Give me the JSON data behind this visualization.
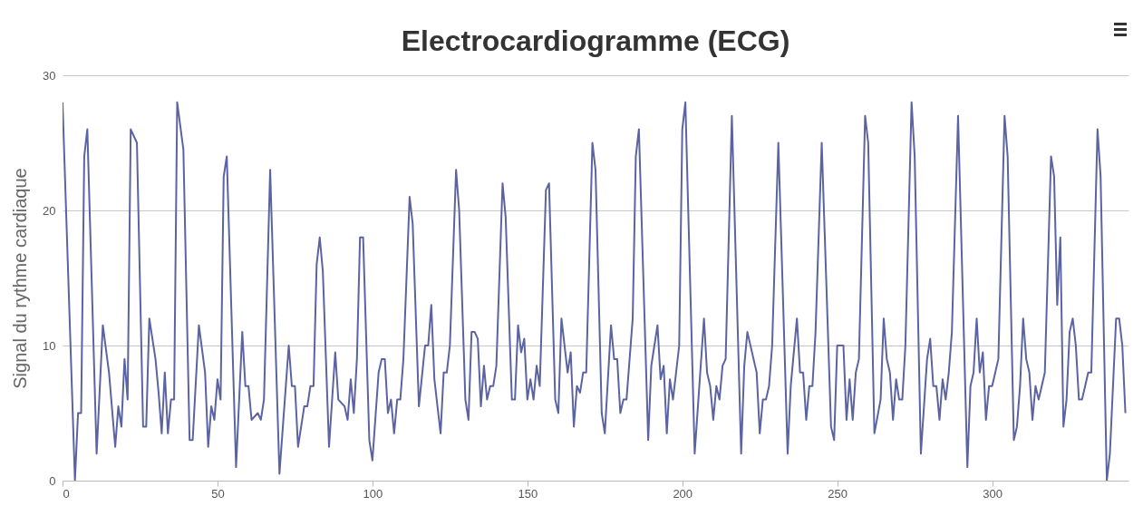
{
  "chart_data": {
    "type": "line",
    "title": "Electrocardiogramme (ECG)",
    "ylabel": "Signal du rythme cardiaque",
    "x": [
      0,
      4,
      5,
      6,
      7,
      8,
      11,
      13,
      15,
      17,
      18,
      19,
      20,
      21,
      22,
      24,
      26,
      27,
      28,
      30,
      31,
      32,
      33,
      34,
      35,
      36,
      37,
      39,
      41,
      42,
      44,
      46,
      47,
      48,
      49,
      50,
      51,
      52,
      53,
      56,
      58,
      59,
      60,
      61,
      63,
      64,
      65,
      67,
      70,
      73,
      74,
      75,
      76,
      78,
      79,
      80,
      81,
      82,
      83,
      84,
      86,
      88,
      89,
      91,
      92,
      93,
      94,
      95,
      96,
      97,
      99,
      100,
      102,
      103,
      104,
      105,
      106,
      107,
      108,
      109,
      110,
      112,
      113,
      115,
      117,
      118,
      119,
      120,
      122,
      123,
      124,
      125,
      127,
      128,
      130,
      131,
      132,
      133,
      134,
      135,
      136,
      137,
      138,
      139,
      140,
      142,
      143,
      145,
      146,
      147,
      148,
      149,
      150,
      151,
      152,
      153,
      154,
      156,
      157,
      159,
      160,
      161,
      163,
      164,
      165,
      166,
      167,
      168,
      169,
      171,
      172,
      174,
      175,
      177,
      178,
      179,
      180,
      181,
      182,
      184,
      185,
      186,
      189,
      190,
      191,
      192,
      193,
      194,
      195,
      196,
      197,
      199,
      200,
      201,
      204,
      207,
      208,
      209,
      210,
      211,
      212,
      213,
      214,
      216,
      219,
      220,
      221,
      223,
      224,
      225,
      226,
      227,
      228,
      229,
      231,
      234,
      235,
      237,
      238,
      239,
      240,
      241,
      242,
      243,
      245,
      248,
      249,
      250,
      252,
      253,
      254,
      255,
      256,
      257,
      259,
      260,
      262,
      264,
      265,
      266,
      267,
      268,
      269,
      270,
      271,
      272,
      274,
      275,
      277,
      279,
      280,
      281,
      282,
      283,
      284,
      285,
      286,
      287,
      289,
      292,
      293,
      294,
      295,
      296,
      297,
      298,
      299,
      300,
      301,
      302,
      304,
      305,
      307,
      308,
      309,
      310,
      311,
      312,
      313,
      314,
      315,
      316,
      317,
      319,
      320,
      321,
      322,
      323,
      324,
      325,
      326,
      327,
      328,
      329,
      330,
      331,
      332,
      334,
      335,
      337,
      338,
      340,
      341,
      342,
      343
    ],
    "series": [
      {
        "color": "#5c63a2",
        "values": [
          28,
          0,
          5,
          5,
          24,
          26,
          2,
          11.5,
          8,
          2.5,
          5.5,
          4,
          9,
          6,
          26,
          25,
          4,
          4,
          12,
          9,
          6.5,
          3.5,
          8,
          3.5,
          6,
          6,
          28,
          24.5,
          3,
          3,
          11.5,
          8,
          2.5,
          5.5,
          4.5,
          7.5,
          6,
          22.5,
          24,
          1,
          11,
          7,
          7,
          4.5,
          5,
          4.5,
          6,
          23,
          0.5,
          10,
          7,
          7,
          2.5,
          5.5,
          5.5,
          7,
          7,
          16,
          18,
          15.5,
          2.5,
          9.5,
          6,
          5.5,
          4.5,
          7.5,
          5,
          9,
          18,
          18,
          3,
          1.5,
          8,
          9,
          9,
          5,
          6,
          3.5,
          6,
          6,
          9,
          21,
          19,
          5.5,
          10,
          10,
          13,
          7.5,
          3.5,
          8,
          8,
          10,
          23,
          20,
          6,
          4.5,
          11,
          11,
          10.5,
          5.5,
          8.5,
          6,
          7,
          7,
          8.5,
          22,
          19.5,
          6,
          6,
          11.5,
          9.5,
          10.5,
          6,
          7.5,
          6,
          8.5,
          7,
          21.5,
          22,
          6,
          5,
          12,
          8,
          9.5,
          4,
          7,
          6.5,
          8,
          8,
          25,
          23,
          5,
          3.5,
          11.5,
          9,
          9,
          5,
          6,
          6,
          12,
          24,
          26,
          3,
          8.5,
          10,
          11.5,
          7.5,
          8.5,
          3.5,
          7.5,
          6,
          10,
          26,
          28,
          2,
          12,
          8,
          7,
          4.5,
          7,
          6,
          8.5,
          9,
          27,
          2,
          8.5,
          11,
          9,
          8,
          3.5,
          6,
          6,
          7,
          10,
          25,
          2,
          7,
          12,
          8,
          8,
          4.5,
          7,
          7,
          11,
          25,
          4,
          3,
          10,
          10,
          4.5,
          7.5,
          4.5,
          8,
          9,
          27,
          25,
          3.5,
          6,
          12,
          9,
          8,
          4.5,
          7.5,
          6,
          6,
          10,
          28,
          24,
          2,
          9,
          10.5,
          7,
          7,
          4.5,
          7.5,
          6,
          8,
          11,
          27,
          1,
          7,
          8,
          12,
          8,
          9.5,
          4.5,
          7,
          7,
          8,
          9,
          27,
          24,
          3,
          4,
          7,
          12,
          9,
          8,
          4.5,
          7,
          6,
          7,
          8,
          24,
          22.5,
          13,
          18,
          4,
          6,
          11,
          12,
          10,
          6,
          6,
          7,
          8,
          8,
          26,
          22.5,
          0,
          2,
          12,
          12,
          10,
          5
        ]
      }
    ],
    "xlim": [
      0,
      344
    ],
    "xticks": [
      0,
      50,
      100,
      150,
      200,
      250,
      300
    ],
    "ylim": [
      0,
      30
    ],
    "yticks": [
      0,
      10,
      20,
      30
    ],
    "grid": "y"
  }
}
